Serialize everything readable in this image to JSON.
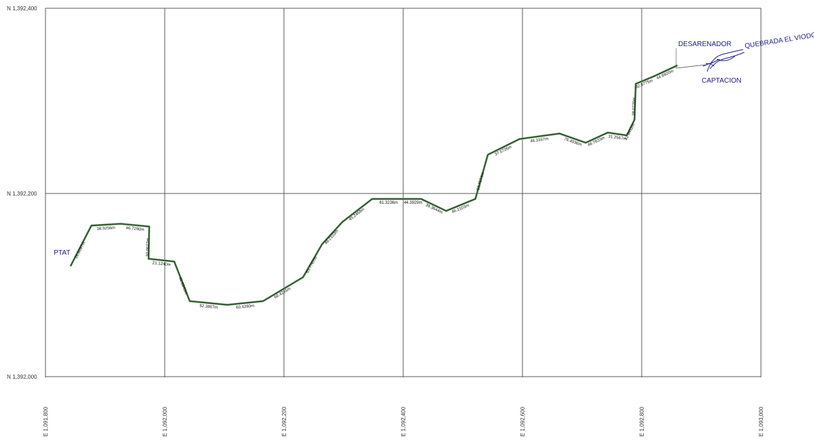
{
  "colors": {
    "grid": "#5a5a5a",
    "pipeline": "#1e4d1e",
    "place_labels": "#1a1a8c",
    "segment_labels": "#111111",
    "background": "#ffffff"
  },
  "map": {
    "easting_labels": [
      "E 1,091,800",
      "E 1,092,000",
      "E 1,092,200",
      "E 1,092,400",
      "E 1,092,600",
      "E 1,092,800",
      "E 1,093,000"
    ],
    "northing_labels": [
      "N 1,392,400",
      "N 1,392,200",
      "N 1,392,000"
    ],
    "places": {
      "ptat": "PTAT",
      "desarenador": "DESARENADOR",
      "quebrada": "QUEBRADA EL VIODO",
      "captacion": "CAPTACION"
    },
    "segment_lengths": [
      "16.6097m",
      "38.9256m",
      "46.7290m",
      "30.0627m",
      "21.1240m",
      "40.8349m",
      "52.3867m",
      "60.4280m",
      "66.4245m",
      "65.7767m",
      "48.2103m",
      "45.2468m",
      "61.3236m",
      "44.3929m",
      "38.3644m",
      "46.2103m",
      "53.7574m",
      "37.5726m",
      "46.3167m",
      "76.4936m",
      "46.7633m",
      "31.2567m",
      "32.8411m",
      "28.0726m",
      "32.0775m",
      "44.6920m",
      "28.6768m"
    ],
    "route": [
      {
        "e": 1091842,
        "n": 1392120
      },
      {
        "e": 1091877,
        "n": 1392164
      },
      {
        "e": 1091926,
        "n": 1392166
      },
      {
        "e": 1091974,
        "n": 1392163
      },
      {
        "e": 1091973,
        "n": 1392128
      },
      {
        "e": 1092016,
        "n": 1392125
      },
      {
        "e": 1092042,
        "n": 1392082
      },
      {
        "e": 1092105,
        "n": 1392078
      },
      {
        "e": 1092165,
        "n": 1392082
      },
      {
        "e": 1092232,
        "n": 1392108
      },
      {
        "e": 1092264,
        "n": 1392144
      },
      {
        "e": 1092298,
        "n": 1392168
      },
      {
        "e": 1092348,
        "n": 1392193
      },
      {
        "e": 1092403,
        "n": 1392193
      },
      {
        "e": 1092430,
        "n": 1392193
      },
      {
        "e": 1092472,
        "n": 1392180
      },
      {
        "e": 1092521,
        "n": 1392193
      },
      {
        "e": 1092542,
        "n": 1392241
      },
      {
        "e": 1092595,
        "n": 1392258
      },
      {
        "e": 1092662,
        "n": 1392264
      },
      {
        "e": 1092706,
        "n": 1392254
      },
      {
        "e": 1092743,
        "n": 1392265
      },
      {
        "e": 1092775,
        "n": 1392262
      },
      {
        "e": 1092788,
        "n": 1392279
      },
      {
        "e": 1092790,
        "n": 1392318
      },
      {
        "e": 1092820,
        "n": 1392326
      },
      {
        "e": 1092860,
        "n": 1392338
      }
    ]
  }
}
